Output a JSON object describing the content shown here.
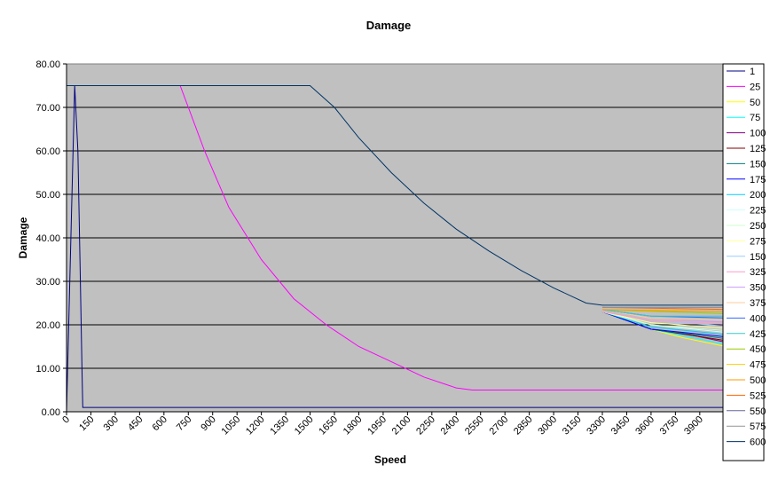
{
  "chart_data": {
    "type": "line",
    "title": "Damage",
    "xlabel": "Speed",
    "ylabel": "Damage",
    "xlim": [
      0,
      4125
    ],
    "ylim": [
      0,
      80
    ],
    "x_ticks": [
      "0",
      "150",
      "300",
      "450",
      "600",
      "750",
      "900",
      "1050",
      "1200",
      "1350",
      "1500",
      "1650",
      "1800",
      "1950",
      "2100",
      "2250",
      "2400",
      "2550",
      "2700",
      "2850",
      "3000",
      "3150",
      "3300",
      "3450",
      "3600",
      "3750",
      "3900"
    ],
    "y_ticks": [
      "0.00",
      "10.00",
      "20.00",
      "30.00",
      "40.00",
      "50.00",
      "60.00",
      "70.00",
      "80.00"
    ],
    "grid": "horizontal",
    "legend_position": "right",
    "plot_background": "#c0c0c0",
    "series": [
      {
        "name": "1",
        "color": "#000080",
        "x": [
          0,
          50,
          70,
          85,
          95,
          100,
          4125
        ],
        "y": [
          0,
          75,
          60,
          30,
          10,
          1,
          1
        ]
      },
      {
        "name": "25",
        "color": "#ff00ff",
        "x": [
          0,
          700,
          750,
          850,
          1000,
          1200,
          1400,
          1600,
          1800,
          2000,
          2200,
          2400,
          2500,
          4125
        ],
        "y": [
          75,
          75,
          70,
          60,
          47,
          35,
          26,
          20,
          15,
          11.5,
          8,
          5.5,
          5,
          5
        ]
      },
      {
        "name": "50",
        "color": "#ffff00",
        "x": [
          3300,
          3600,
          3800,
          4125
        ],
        "y": [
          23,
          19,
          17,
          14.5
        ]
      },
      {
        "name": "75",
        "color": "#00ffff",
        "x": [
          3300,
          3600,
          3800,
          4125
        ],
        "y": [
          23,
          19,
          17.5,
          15
        ]
      },
      {
        "name": "100",
        "color": "#800080",
        "x": [
          3300,
          3600,
          3800,
          4125
        ],
        "y": [
          23,
          19,
          18,
          15.5
        ]
      },
      {
        "name": "125",
        "color": "#800000",
        "x": [
          3300,
          3600,
          4125
        ],
        "y": [
          23,
          19,
          16
        ]
      },
      {
        "name": "150",
        "color": "#008080",
        "x": [
          3300,
          3600,
          4125
        ],
        "y": [
          23,
          19,
          16.5
        ]
      },
      {
        "name": "175",
        "color": "#0000ff",
        "x": [
          3300,
          3600,
          4125
        ],
        "y": [
          23,
          19,
          17
        ]
      },
      {
        "name": "200",
        "color": "#00ccff",
        "x": [
          3300,
          3600,
          4125
        ],
        "y": [
          23,
          19.5,
          17.5
        ]
      },
      {
        "name": "225",
        "color": "#ccffff",
        "x": [
          3300,
          3600,
          4125
        ],
        "y": [
          23,
          20,
          18
        ]
      },
      {
        "name": "250",
        "color": "#ccffcc",
        "x": [
          3300,
          3600,
          4125
        ],
        "y": [
          23,
          20,
          18.5
        ]
      },
      {
        "name": "275",
        "color": "#ffff99",
        "x": [
          3300,
          3600,
          4125
        ],
        "y": [
          23,
          20.5,
          19
        ]
      },
      {
        "name": "150",
        "color": "#99ccff",
        "x": [
          3300,
          3600,
          4125
        ],
        "y": [
          23,
          21,
          19.5
        ]
      },
      {
        "name": "325",
        "color": "#ff99cc",
        "x": [
          3300,
          3600,
          4125
        ],
        "y": [
          23,
          21,
          20
        ]
      },
      {
        "name": "350",
        "color": "#cc99ff",
        "x": [
          3300,
          3600,
          4125
        ],
        "y": [
          23.5,
          21.5,
          20.5
        ]
      },
      {
        "name": "375",
        "color": "#ffcc99",
        "x": [
          3300,
          3600,
          4125
        ],
        "y": [
          23.5,
          21.5,
          21
        ]
      },
      {
        "name": "400",
        "color": "#3366ff",
        "x": [
          3300,
          3600,
          4125
        ],
        "y": [
          23.5,
          22,
          21.5
        ]
      },
      {
        "name": "425",
        "color": "#33cccc",
        "x": [
          3300,
          3600,
          4125
        ],
        "y": [
          23.5,
          22,
          22
        ]
      },
      {
        "name": "450",
        "color": "#99cc00",
        "x": [
          3300,
          4125
        ],
        "y": [
          23.5,
          22.5
        ]
      },
      {
        "name": "475",
        "color": "#ffcc00",
        "x": [
          3300,
          4125
        ],
        "y": [
          23.5,
          23
        ]
      },
      {
        "name": "500",
        "color": "#ff9900",
        "x": [
          3300,
          4125
        ],
        "y": [
          23.5,
          23
        ]
      },
      {
        "name": "525",
        "color": "#ff6600",
        "x": [
          3300,
          4125
        ],
        "y": [
          24,
          23.5
        ]
      },
      {
        "name": "550",
        "color": "#666699",
        "x": [
          3300,
          4125
        ],
        "y": [
          24,
          24
        ]
      },
      {
        "name": "575",
        "color": "#969696",
        "x": [
          3300,
          4125
        ],
        "y": [
          24,
          24
        ]
      },
      {
        "name": "600",
        "color": "#003366",
        "x": [
          0,
          1500,
          1650,
          1800,
          2000,
          2200,
          2400,
          2600,
          2800,
          3000,
          3200,
          3300,
          4125
        ],
        "y": [
          75,
          75,
          70,
          63,
          55,
          48,
          42,
          37,
          32.5,
          28.5,
          25,
          24.5,
          24.5
        ]
      }
    ]
  }
}
